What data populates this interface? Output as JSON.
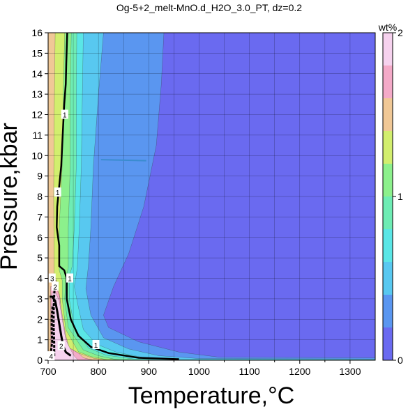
{
  "chart_data": {
    "type": "heatmap",
    "title": "Og-5+2_melt-MnO.d_H2O_3.0_PT, dz=0.2",
    "xlabel": "Temperature,°C",
    "ylabel": "Pressure,kbar",
    "xlim": [
      700,
      1350
    ],
    "ylim": [
      0,
      16
    ],
    "x_ticks": [
      700,
      800,
      900,
      1000,
      1100,
      1200,
      1300
    ],
    "y_ticks": [
      0,
      1,
      2,
      3,
      4,
      5,
      6,
      7,
      8,
      9,
      10,
      11,
      12,
      13,
      14,
      15,
      16
    ],
    "grid": true,
    "colorbar": {
      "label": "wt%",
      "range": [
        0,
        2
      ],
      "tick_labels": [
        "0",
        "1",
        "2"
      ],
      "ticks": [
        0,
        1,
        2
      ],
      "levels": [
        {
          "from": 0.0,
          "to": 0.2,
          "color": "#6a6af0"
        },
        {
          "from": 0.2,
          "to": 0.4,
          "color": "#5a96f0"
        },
        {
          "from": 0.4,
          "to": 0.6,
          "color": "#58c8f0"
        },
        {
          "from": 0.6,
          "to": 0.8,
          "color": "#5ae6e6"
        },
        {
          "from": 0.8,
          "to": 1.0,
          "color": "#6eecb4"
        },
        {
          "from": 1.0,
          "to": 1.2,
          "color": "#8cf08c"
        },
        {
          "from": 1.2,
          "to": 1.4,
          "color": "#d2ee6e"
        },
        {
          "from": 1.4,
          "to": 1.6,
          "color": "#f0c896"
        },
        {
          "from": 1.6,
          "to": 1.8,
          "color": "#f4aac8"
        },
        {
          "from": 1.8,
          "to": 2.0,
          "color": "#f6d2ee"
        }
      ]
    },
    "background_value": 0.1,
    "regions": [
      {
        "value": 0.3,
        "points": [
          [
            1350,
            0
          ],
          [
            1350,
            0.12
          ],
          [
            1040,
            0.15
          ],
          [
            960,
            0.4
          ],
          [
            880,
            0.9
          ],
          [
            820,
            1.6
          ],
          [
            810,
            2.2
          ],
          [
            830,
            3.6
          ],
          [
            860,
            5.2
          ],
          [
            890,
            7.5
          ],
          [
            915,
            10.5
          ],
          [
            925,
            13.5
          ],
          [
            930,
            16
          ],
          [
            700,
            16
          ],
          [
            700,
            0
          ]
        ]
      },
      {
        "value": 0.5,
        "points": [
          [
            1350,
            0
          ],
          [
            1350,
            0.06
          ],
          [
            1000,
            0.08
          ],
          [
            920,
            0.22
          ],
          [
            860,
            0.55
          ],
          [
            810,
            1.1
          ],
          [
            785,
            2.2
          ],
          [
            775,
            3.5
          ],
          [
            780,
            4.6
          ],
          [
            785,
            6.5
          ],
          [
            790,
            9.5
          ],
          [
            800,
            13
          ],
          [
            810,
            16
          ],
          [
            700,
            16
          ],
          [
            700,
            0
          ]
        ]
      },
      {
        "value": 0.7,
        "points": [
          [
            1350,
            0
          ],
          [
            1350,
            0.03
          ],
          [
            960,
            0.04
          ],
          [
            890,
            0.13
          ],
          [
            835,
            0.4
          ],
          [
            795,
            0.8
          ],
          [
            770,
            1.5
          ],
          [
            760,
            2.6
          ],
          [
            752,
            3.6
          ],
          [
            758,
            4.5
          ],
          [
            762,
            6.5
          ],
          [
            766,
            9.5
          ],
          [
            768,
            13
          ],
          [
            770,
            16
          ],
          [
            700,
            16
          ],
          [
            700,
            0
          ]
        ]
      },
      {
        "value": 0.9,
        "points": [
          [
            930,
            0
          ],
          [
            870,
            0.06
          ],
          [
            815,
            0.25
          ],
          [
            780,
            0.6
          ],
          [
            752,
            1.6
          ],
          [
            742,
            3.0
          ],
          [
            742,
            4.1
          ],
          [
            748,
            4.6
          ],
          [
            752,
            6.5
          ],
          [
            756,
            9.5
          ],
          [
            756,
            13
          ],
          [
            757,
            16
          ],
          [
            700,
            16
          ],
          [
            700,
            0
          ]
        ]
      },
      {
        "value": 1.1,
        "points": [
          [
            880,
            0
          ],
          [
            830,
            0.06
          ],
          [
            800,
            0.22
          ],
          [
            770,
            0.5
          ],
          [
            740,
            1.6
          ],
          [
            733,
            3.0
          ],
          [
            735,
            4.0
          ],
          [
            740,
            4.5
          ],
          [
            740,
            6.5
          ],
          [
            744,
            9.5
          ],
          [
            744,
            13
          ],
          [
            746,
            16
          ],
          [
            700,
            16
          ],
          [
            700,
            0
          ]
        ]
      },
      {
        "value": 1.3,
        "points": [
          [
            850,
            0
          ],
          [
            810,
            0.06
          ],
          [
            785,
            0.18
          ],
          [
            760,
            0.42
          ],
          [
            735,
            1.5
          ],
          [
            728,
            3.0
          ],
          [
            728,
            3.9
          ],
          [
            722,
            4.4
          ],
          [
            722,
            6.5
          ],
          [
            728,
            9.5
          ],
          [
            730,
            13
          ],
          [
            733,
            16
          ],
          [
            700,
            16
          ],
          [
            700,
            0
          ]
        ]
      },
      {
        "value": 1.5,
        "points": [
          [
            820,
            0
          ],
          [
            790,
            0.1
          ],
          [
            760,
            0.35
          ],
          [
            735,
            0.7
          ],
          [
            728,
            1.6
          ],
          [
            724,
            3.0
          ],
          [
            718,
            3.8
          ],
          [
            712,
            4.2
          ],
          [
            711,
            8
          ],
          [
            712,
            12
          ],
          [
            714,
            16
          ],
          [
            700,
            16
          ],
          [
            700,
            0
          ]
        ]
      },
      {
        "value": 1.7,
        "points": [
          [
            790,
            0
          ],
          [
            770,
            0.12
          ],
          [
            760,
            0.35
          ],
          [
            742,
            0.6
          ],
          [
            735,
            1.2
          ],
          [
            728,
            2.2
          ],
          [
            722,
            3.2
          ],
          [
            715,
            3.6
          ],
          [
            705,
            3.6
          ],
          [
            705,
            0
          ]
        ]
      },
      {
        "value": 1.9,
        "points": [
          [
            760,
            0
          ],
          [
            752,
            0.2
          ],
          [
            745,
            0.5
          ],
          [
            735,
            1.0
          ],
          [
            728,
            2.0
          ],
          [
            722,
            2.9
          ],
          [
            715,
            3.3
          ],
          [
            708,
            3.3
          ],
          [
            708,
            0
          ]
        ]
      }
    ],
    "contour_lines": [
      {
        "value": 1,
        "points": [
          [
            960,
            0.05
          ],
          [
            880,
            0.12
          ],
          [
            820,
            0.35
          ],
          [
            785,
            0.65
          ],
          [
            760,
            1.2
          ],
          [
            745,
            2.0
          ],
          [
            737,
            3.0
          ],
          [
            737,
            4.0
          ],
          [
            732,
            4.4
          ],
          [
            722,
            4.6
          ],
          [
            722,
            5.6
          ],
          [
            717,
            6.5
          ],
          [
            718,
            7.5
          ],
          [
            722,
            8.5
          ],
          [
            726,
            9.5
          ],
          [
            728,
            10.5
          ],
          [
            730,
            11.5
          ],
          [
            732,
            12.5
          ],
          [
            735,
            13.5
          ],
          [
            736,
            14.5
          ],
          [
            738,
            16
          ]
        ]
      },
      {
        "value": 2,
        "points": [
          [
            745,
            0.22
          ],
          [
            735,
            0.4
          ],
          [
            730,
            0.7
          ],
          [
            726,
            1.2
          ],
          [
            722,
            1.8
          ],
          [
            718,
            2.4
          ],
          [
            714,
            2.9
          ],
          [
            708,
            3.1
          ],
          [
            703,
            3.1
          ]
        ]
      },
      {
        "value": 3,
        "points": [
          [
            712,
            0.2
          ],
          [
            712,
            0.8
          ],
          [
            711,
            1.6
          ],
          [
            711,
            2.4
          ],
          [
            712,
            3.2
          ],
          [
            714,
            3.9
          ]
        ]
      },
      {
        "value": 4,
        "points": [
          [
            703,
            0.05
          ],
          [
            705,
            0.3
          ],
          [
            708,
            0.9
          ],
          [
            707,
            1.5
          ],
          [
            707,
            2.1
          ],
          [
            709,
            2.7
          ]
        ]
      }
    ],
    "contour_labels": [
      {
        "text": "1",
        "x": 733,
        "y": 12.0
      },
      {
        "text": "1",
        "x": 719,
        "y": 8.2
      },
      {
        "text": "1",
        "x": 795,
        "y": 0.75
      },
      {
        "text": "1",
        "x": 743,
        "y": 4.0
      },
      {
        "text": "2",
        "x": 726,
        "y": 0.7
      },
      {
        "text": "2",
        "x": 714,
        "y": 3.6
      },
      {
        "text": "3",
        "x": 708,
        "y": 4.0
      },
      {
        "text": "4",
        "x": 706,
        "y": 0.2
      }
    ],
    "artifact_line": {
      "from": [
        805,
        9.8
      ],
      "to": [
        895,
        9.75
      ]
    }
  }
}
